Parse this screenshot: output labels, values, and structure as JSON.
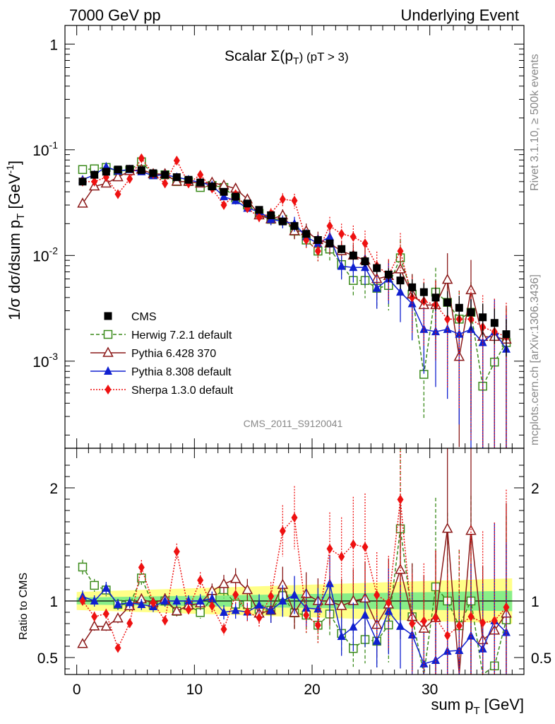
{
  "header": {
    "left": "7000 GeV pp",
    "right": "Underlying Event"
  },
  "side": {
    "top": "Rivet 3.1.10, ≥ 500k events",
    "bottom": "mcplots.cern.ch [arXiv:1306.3436]"
  },
  "analysis_id": "CMS_2011_S9120041",
  "plot_title": {
    "main": "Scalar ",
    "sym": "Σ(p",
    "sub": "T",
    "tail": ") (pT >  3)"
  },
  "ylabel_main": {
    "a": "1/σ dσ/dsum p",
    "sub": "T",
    "b": " [GeV",
    "sup": "-1",
    "c": "]"
  },
  "ylabel_ratio": "Ratio to CMS",
  "xlabel": {
    "a": "sum p",
    "sub": "T",
    "b": " [GeV]"
  },
  "legend": [
    "CMS",
    "Herwig 7.2.1 default",
    "Pythia 6.428 370",
    "Pythia 8.308 default",
    "Sherpa 1.3.0 default"
  ],
  "colors": {
    "cms": "#000000",
    "herwig": "#3a8a1a",
    "py6": "#8b1a1a",
    "py8": "#1020d0",
    "sherpa": "#ee1111",
    "band_yellow": "#ffff88",
    "band_green": "#88ee88"
  },
  "chart_data": [
    {
      "type": "scatter",
      "panel": "main",
      "log_y": true,
      "xlim": [
        -1,
        38
      ],
      "ylim": [
        0.00015,
        1.5
      ],
      "x_ticks": [
        "0",
        "10",
        "20",
        "30"
      ],
      "y_ticks": [
        "1",
        "10^-1",
        "10^-2",
        "10^-3"
      ],
      "x": [
        0.5,
        1.5,
        2.5,
        3.5,
        4.5,
        5.5,
        6.5,
        7.5,
        8.5,
        9.5,
        10.5,
        11.5,
        12.5,
        13.5,
        14.5,
        15.5,
        16.5,
        17.5,
        18.5,
        19.5,
        20.5,
        21.5,
        22.5,
        23.5,
        24.5,
        25.5,
        26.5,
        27.5,
        28.5,
        29.5,
        30.5,
        31.5,
        32.5,
        33.5,
        34.5,
        35.5,
        36.5
      ],
      "series": [
        {
          "name": "CMS",
          "values": [
            0.05,
            0.058,
            0.062,
            0.065,
            0.066,
            0.064,
            0.06,
            0.058,
            0.055,
            0.052,
            0.049,
            0.045,
            0.04,
            0.036,
            0.031,
            0.027,
            0.024,
            0.021,
            0.019,
            0.016,
            0.014,
            0.013,
            0.0115,
            0.01,
            0.0088,
            0.0076,
            0.0066,
            0.0058,
            0.005,
            0.0045,
            0.004,
            0.0036,
            0.0032,
            0.0029,
            0.0026,
            0.0023,
            0.0018
          ]
        },
        {
          "name": "Herwig 7.2.1 default",
          "values": [
            0.065,
            0.066,
            0.068,
            0.063,
            0.064,
            0.077,
            0.058,
            0.058,
            0.05,
            0.05,
            0.044,
            0.046,
            0.044,
            0.035,
            0.03,
            0.025,
            0.022,
            0.022,
            0.017,
            0.014,
            0.011,
            0.0115,
            0.0082,
            0.0058,
            0.0058,
            0.0049,
            0.0052,
            0.0095,
            0.0043,
            0.00075,
            0.0045,
            0.0036,
            0.0025,
            0.0029,
            0.00058,
            0.00098,
            0.0015
          ]
        },
        {
          "name": "Pythia 6.428 370",
          "values": [
            0.031,
            0.045,
            0.048,
            0.055,
            0.063,
            0.065,
            0.059,
            0.059,
            0.05,
            0.05,
            0.048,
            0.049,
            0.046,
            0.043,
            0.034,
            0.024,
            0.022,
            0.024,
            0.017,
            0.017,
            0.014,
            0.013,
            0.011,
            0.01,
            0.009,
            0.006,
            0.0064,
            0.0074,
            0.0043,
            0.0034,
            0.0034,
            0.0059,
            0.0011,
            0.0047,
            0.0017,
            0.0017,
            0.0016
          ]
        },
        {
          "name": "Pythia 8.308 default",
          "values": [
            0.052,
            0.058,
            0.069,
            0.063,
            0.065,
            0.062,
            0.057,
            0.058,
            0.055,
            0.052,
            0.049,
            0.046,
            0.036,
            0.033,
            0.028,
            0.026,
            0.022,
            0.021,
            0.02,
            0.015,
            0.013,
            0.015,
            0.0079,
            0.0077,
            0.0077,
            0.0049,
            0.006,
            0.0045,
            0.0035,
            0.002,
            0.0019,
            0.002,
            0.0018,
            0.002,
            0.0015,
            0.0019,
            0.0013
          ]
        },
        {
          "name": "Sherpa 1.3.0 default",
          "values": [
            0.05,
            0.05,
            0.055,
            0.038,
            0.053,
            0.083,
            0.059,
            0.048,
            0.079,
            0.048,
            0.058,
            0.043,
            0.03,
            0.038,
            0.028,
            0.023,
            0.025,
            0.034,
            0.033,
            0.014,
            0.011,
            0.019,
            0.016,
            0.015,
            0.013,
            0.008,
            0.0065,
            0.011,
            0.004,
            0.0037,
            0.0034,
            0.0025,
            0.0025,
            0.0025,
            0.0021,
            0.0019,
            0.0017
          ]
        }
      ],
      "rel_errors": [
        0.05,
        0.05,
        0.05,
        0.05,
        0.05,
        0.05,
        0.05,
        0.05,
        0.05,
        0.05,
        0.06,
        0.06,
        0.07,
        0.08,
        0.09,
        0.1,
        0.12,
        0.14,
        0.16,
        0.18,
        0.2,
        0.22,
        0.25,
        0.28,
        0.32,
        0.36,
        0.42,
        0.48,
        0.55,
        0.62,
        0.7,
        0.78,
        0.86,
        0.93,
        1.0,
        1.05,
        1.1
      ]
    },
    {
      "type": "scatter",
      "panel": "ratio",
      "xlim": [
        -1,
        38
      ],
      "ylim": [
        0.35,
        2.35
      ],
      "y_ticks": [
        "0.5",
        "1",
        "2"
      ],
      "band_green_half": [
        0.03,
        0.09
      ],
      "band_yellow_half": [
        0.08,
        0.2
      ]
    }
  ]
}
